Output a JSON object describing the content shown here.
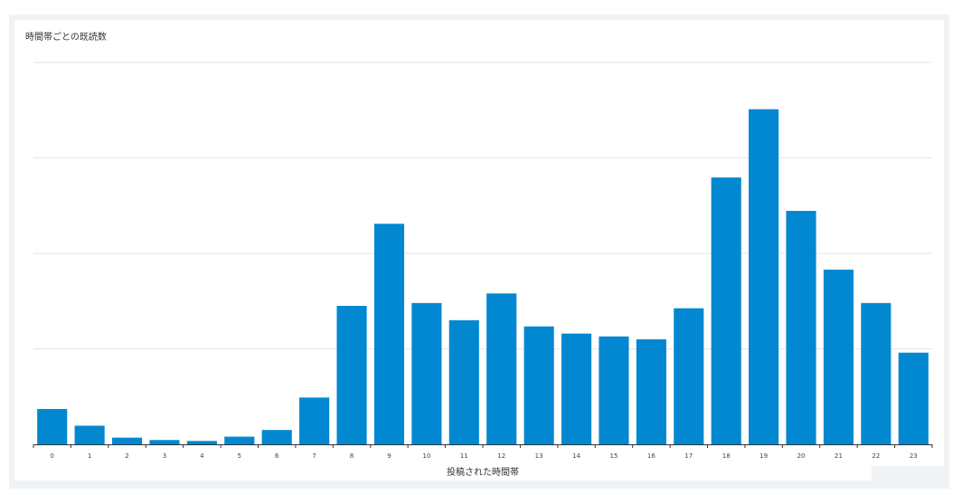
{
  "chart_data": {
    "type": "bar",
    "title": "時間帯ごとの既読数",
    "xlabel": "投稿された時間帯",
    "ylabel": "",
    "categories": [
      "0",
      "1",
      "2",
      "3",
      "4",
      "5",
      "6",
      "7",
      "8",
      "9",
      "10",
      "11",
      "12",
      "13",
      "14",
      "15",
      "16",
      "17",
      "18",
      "19",
      "20",
      "21",
      "22",
      "23"
    ],
    "values": [
      7.4,
      3.9,
      1.4,
      0.9,
      0.7,
      1.6,
      3.0,
      9.8,
      29.0,
      46.2,
      29.6,
      26.0,
      31.6,
      24.7,
      23.2,
      22.6,
      22.0,
      28.5,
      55.9,
      70.2,
      48.9,
      36.6,
      29.6,
      19.2
    ],
    "ylim": [
      0,
      80
    ],
    "grid": true,
    "bar_color": "#0288d1"
  }
}
